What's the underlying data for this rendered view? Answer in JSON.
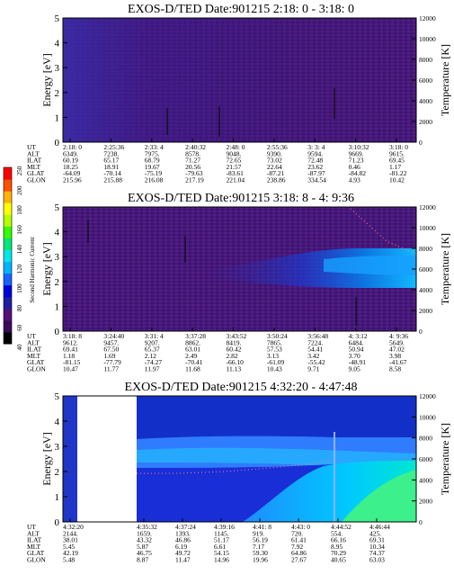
{
  "panels": [
    {
      "title": "EXOS-D/TED   Date:901215  2:18: 0 - 3:18: 0",
      "ylabel": "Energy [eV]",
      "y2label": "Temperature [K]",
      "yticks": [
        "0",
        "1",
        "2",
        "3",
        "4",
        "5"
      ],
      "y2ticks": [
        "0",
        "2000",
        "4000",
        "6000",
        "8000",
        "10000",
        "12000"
      ],
      "table": {
        "row_labels": [
          "UT",
          "ALT",
          "ILAT",
          "MLT",
          "GLAT",
          "GLON"
        ],
        "columns": [
          [
            "2:18: 0",
            "6349.",
            "60.19",
            "18.25",
            "-64.09",
            "215.96"
          ],
          [
            "2:25:36",
            "7238.",
            "65.17",
            "18.91",
            "-70.14",
            "215.88"
          ],
          [
            "2:33: 4",
            "7975.",
            "68.79",
            "19.67",
            "-75.19",
            "216.08"
          ],
          [
            "2:40:32",
            "8578.",
            "71.27",
            "20.56",
            "-79.63",
            "217.19"
          ],
          [
            "2:48: 0",
            "9048.",
            "72.65",
            "21.57",
            "-83.61",
            "221.04"
          ],
          [
            "2:55:36",
            "9390.",
            "73.02",
            "22.64",
            "-87.21",
            "238.86"
          ],
          [
            "3: 3: 4",
            "9594.",
            "72.48",
            "23.62",
            "-87.97",
            "334.54"
          ],
          [
            "3:10:32",
            "9669.",
            "71.23",
            "0.46",
            "-84.82",
            "4.93"
          ],
          [
            "3:18: 0",
            "9615.",
            "69.45",
            "1.17",
            "-81.22",
            "10.42"
          ]
        ]
      }
    },
    {
      "title": "EXOS-D/TED   Date:901215  3:18: 8 - 4: 9:36",
      "ylabel": "Energy [eV]",
      "y2label": "Temperature [K]",
      "yticks": [
        "0",
        "1",
        "2",
        "3",
        "4",
        "5"
      ],
      "y2ticks": [
        "0",
        "2000",
        "4000",
        "6000",
        "8000",
        "10000",
        "12000"
      ],
      "table": {
        "row_labels": [
          "UT",
          "ALT",
          "ILAT",
          "MLT",
          "GLAT",
          "GLON"
        ],
        "columns": [
          [
            "3:18: 8",
            "9612.",
            "69.41",
            "1.18",
            "-81.15",
            "10.47"
          ],
          [
            "3:24:40",
            "9457.",
            "67.50",
            "1.69",
            "-77.79",
            "11.77"
          ],
          [
            "3:31: 4",
            "9207.",
            "65.37",
            "2.12",
            "-74.27",
            "11.97"
          ],
          [
            "3:37:28",
            "8862.",
            "63.01",
            "2.49",
            "-70.41",
            "11.68"
          ],
          [
            "3:43:52",
            "8419.",
            "60.42",
            "2.82",
            "-66.10",
            "11.13"
          ],
          [
            "3:50:24",
            "7865.",
            "57.53",
            "3.13",
            "-61.09",
            "10.43"
          ],
          [
            "3:56:48",
            "7224.",
            "54.41",
            "3.42",
            "-55.42",
            "9.71"
          ],
          [
            "4: 3:12",
            "6484.",
            "50.94",
            "3.70",
            "-48.91",
            "9.05"
          ],
          [
            "4: 9:36",
            "5649.",
            "47.02",
            "3.98",
            "-41.67",
            "8.58"
          ]
        ]
      }
    },
    {
      "title": "EXOS-D/TED   Date:901215  4:32:20 - 4:47:48",
      "ylabel": "Energy [eV]",
      "y2label": "Temperature [K]",
      "yticks": [
        "0",
        "1",
        "2",
        "3",
        "4",
        "5"
      ],
      "y2ticks": [
        "0",
        "2000",
        "4000",
        "6000",
        "8000",
        "10000",
        "12000"
      ],
      "table": {
        "row_labels": [
          "UT",
          "ALT",
          "ILAT",
          "MLT",
          "GLAT",
          "GLON"
        ],
        "columns": [
          [
            "4:32:20",
            "2144.",
            "38.01",
            "5.45",
            "42.19",
            "5.48"
          ],
          [
            "4:35:32",
            "1659.",
            "43.32",
            "5.87",
            "46.75",
            "8.87"
          ],
          [
            "4:37:24",
            "1393.",
            "46.86",
            "6.19",
            "49.72",
            "11.47"
          ],
          [
            "4:39:16",
            "1145.",
            "51.17",
            "6.61",
            "54.15",
            "14.96"
          ],
          [
            "4:41: 8",
            "919.",
            "56.19",
            "7.17",
            "59.30",
            "19.96"
          ],
          [
            "4:43: 0",
            "720.",
            "61.41",
            "7.92",
            "64.86",
            "27.67"
          ],
          [
            "4:44:52",
            "554.",
            "66.16",
            "8.95",
            "70.29",
            "40.65"
          ],
          [
            "4:46:44",
            "425.",
            "69.31",
            "10.34",
            "74.37",
            "63.03"
          ]
        ]
      }
    }
  ],
  "colorbar": {
    "label": "Second Harmonic Current",
    "ticks": [
      "40",
      "60",
      "80",
      "100",
      "120",
      "140",
      "160",
      "180",
      "200",
      "250"
    ],
    "colors": [
      "#000000",
      "#3a0a5a",
      "#55107a",
      "#1e1ea0",
      "#0000dc",
      "#1464ff",
      "#00b4ff",
      "#00e6e6",
      "#00e678",
      "#32ff00",
      "#b4ff00",
      "#ffff00",
      "#ffb400",
      "#ff5000",
      "#ff0000"
    ]
  },
  "chart_data": [
    {
      "type": "heatmap",
      "title": "EXOS-D/TED   Date:901215  2:18: 0 - 3:18: 0",
      "ylabel": "Energy [eV]",
      "y2label": "Temperature [K]",
      "ylim": [
        0,
        5
      ],
      "y2lim": [
        0,
        12000
      ],
      "x_ticks_ut": [
        "2:18: 0",
        "2:25:36",
        "2:33: 4",
        "2:40:32",
        "2:48: 0",
        "2:55:36",
        "3: 3: 4",
        "3:10:32",
        "3:18: 0"
      ]
    },
    {
      "type": "heatmap",
      "title": "EXOS-D/TED   Date:901215  3:18: 8 - 4: 9:36",
      "ylabel": "Energy [eV]",
      "y2label": "Temperature [K]",
      "ylim": [
        0,
        5
      ],
      "y2lim": [
        0,
        12000
      ],
      "x_ticks_ut": [
        "3:18: 8",
        "3:24:40",
        "3:31: 4",
        "3:37:28",
        "3:43:52",
        "3:50:24",
        "3:56:48",
        "4: 3:12",
        "4: 9:36"
      ]
    },
    {
      "type": "heatmap",
      "title": "EXOS-D/TED   Date:901215  4:32:20 - 4:47:48",
      "ylabel": "Energy [eV]",
      "y2label": "Temperature [K]",
      "ylim": [
        0,
        5
      ],
      "y2lim": [
        0,
        12000
      ],
      "x_ticks_ut": [
        "4:32:20",
        "4:35:32",
        "4:37:24",
        "4:39:16",
        "4:41: 8",
        "4:43: 0",
        "4:44:52",
        "4:46:44"
      ]
    }
  ]
}
